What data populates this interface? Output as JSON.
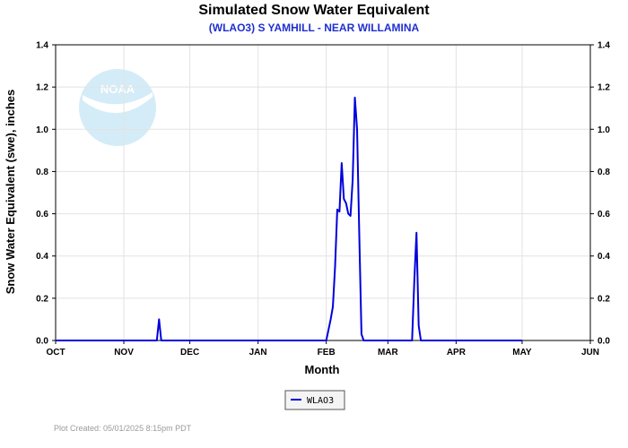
{
  "chart_data": {
    "type": "line",
    "title": "Simulated Snow Water Equivalent",
    "subtitle": "(WLAO3) S YAMHILL - NEAR WILLAMINA",
    "xlabel": "Month",
    "ylabel": "Snow Water Equivalent (swe),  inches",
    "x_ticks": [
      "OCT",
      "NOV",
      "DEC",
      "JAN",
      "FEB",
      "MAR",
      "APR",
      "MAY",
      "JUN"
    ],
    "x_tick_dates": [
      "2024-10-01",
      "2024-11-01",
      "2024-12-01",
      "2025-01-01",
      "2025-02-01",
      "2025-03-01",
      "2025-04-01",
      "2025-05-01",
      "2025-06-01"
    ],
    "xlim": [
      "2024-10-01",
      "2025-06-01"
    ],
    "y_ticks": [
      "0.0",
      "0.2",
      "0.4",
      "0.6",
      "0.8",
      "1.0",
      "1.2",
      "1.4"
    ],
    "ylim": [
      0,
      1.4
    ],
    "grid": true,
    "y_axis_right": true,
    "legend_position": "bottom-center",
    "series": [
      {
        "name": "WLAO3",
        "color": "#0000dd",
        "points": [
          [
            "2024-10-01",
            0.0
          ],
          [
            "2024-11-16",
            0.0
          ],
          [
            "2024-11-17",
            0.1
          ],
          [
            "2024-11-18",
            0.0
          ],
          [
            "2025-02-01",
            0.0
          ],
          [
            "2025-02-03",
            0.1
          ],
          [
            "2025-02-04",
            0.16
          ],
          [
            "2025-02-05",
            0.35
          ],
          [
            "2025-02-06",
            0.62
          ],
          [
            "2025-02-07",
            0.61
          ],
          [
            "2025-02-08",
            0.84
          ],
          [
            "2025-02-09",
            0.67
          ],
          [
            "2025-02-10",
            0.65
          ],
          [
            "2025-02-11",
            0.6
          ],
          [
            "2025-02-12",
            0.59
          ],
          [
            "2025-02-13",
            0.76
          ],
          [
            "2025-02-14",
            1.15
          ],
          [
            "2025-02-15",
            1.0
          ],
          [
            "2025-02-16",
            0.5
          ],
          [
            "2025-02-17",
            0.03
          ],
          [
            "2025-02-18",
            0.0
          ],
          [
            "2025-03-12",
            0.0
          ],
          [
            "2025-03-13",
            0.28
          ],
          [
            "2025-03-14",
            0.51
          ],
          [
            "2025-03-15",
            0.07
          ],
          [
            "2025-03-16",
            0.0
          ],
          [
            "2025-05-01",
            0.0
          ]
        ]
      }
    ]
  },
  "logo": {
    "text": "NOAA",
    "color": "#d4ecf7"
  },
  "footer": {
    "text": "Plot Created: 05/01/2025 8:15pm PDT"
  }
}
